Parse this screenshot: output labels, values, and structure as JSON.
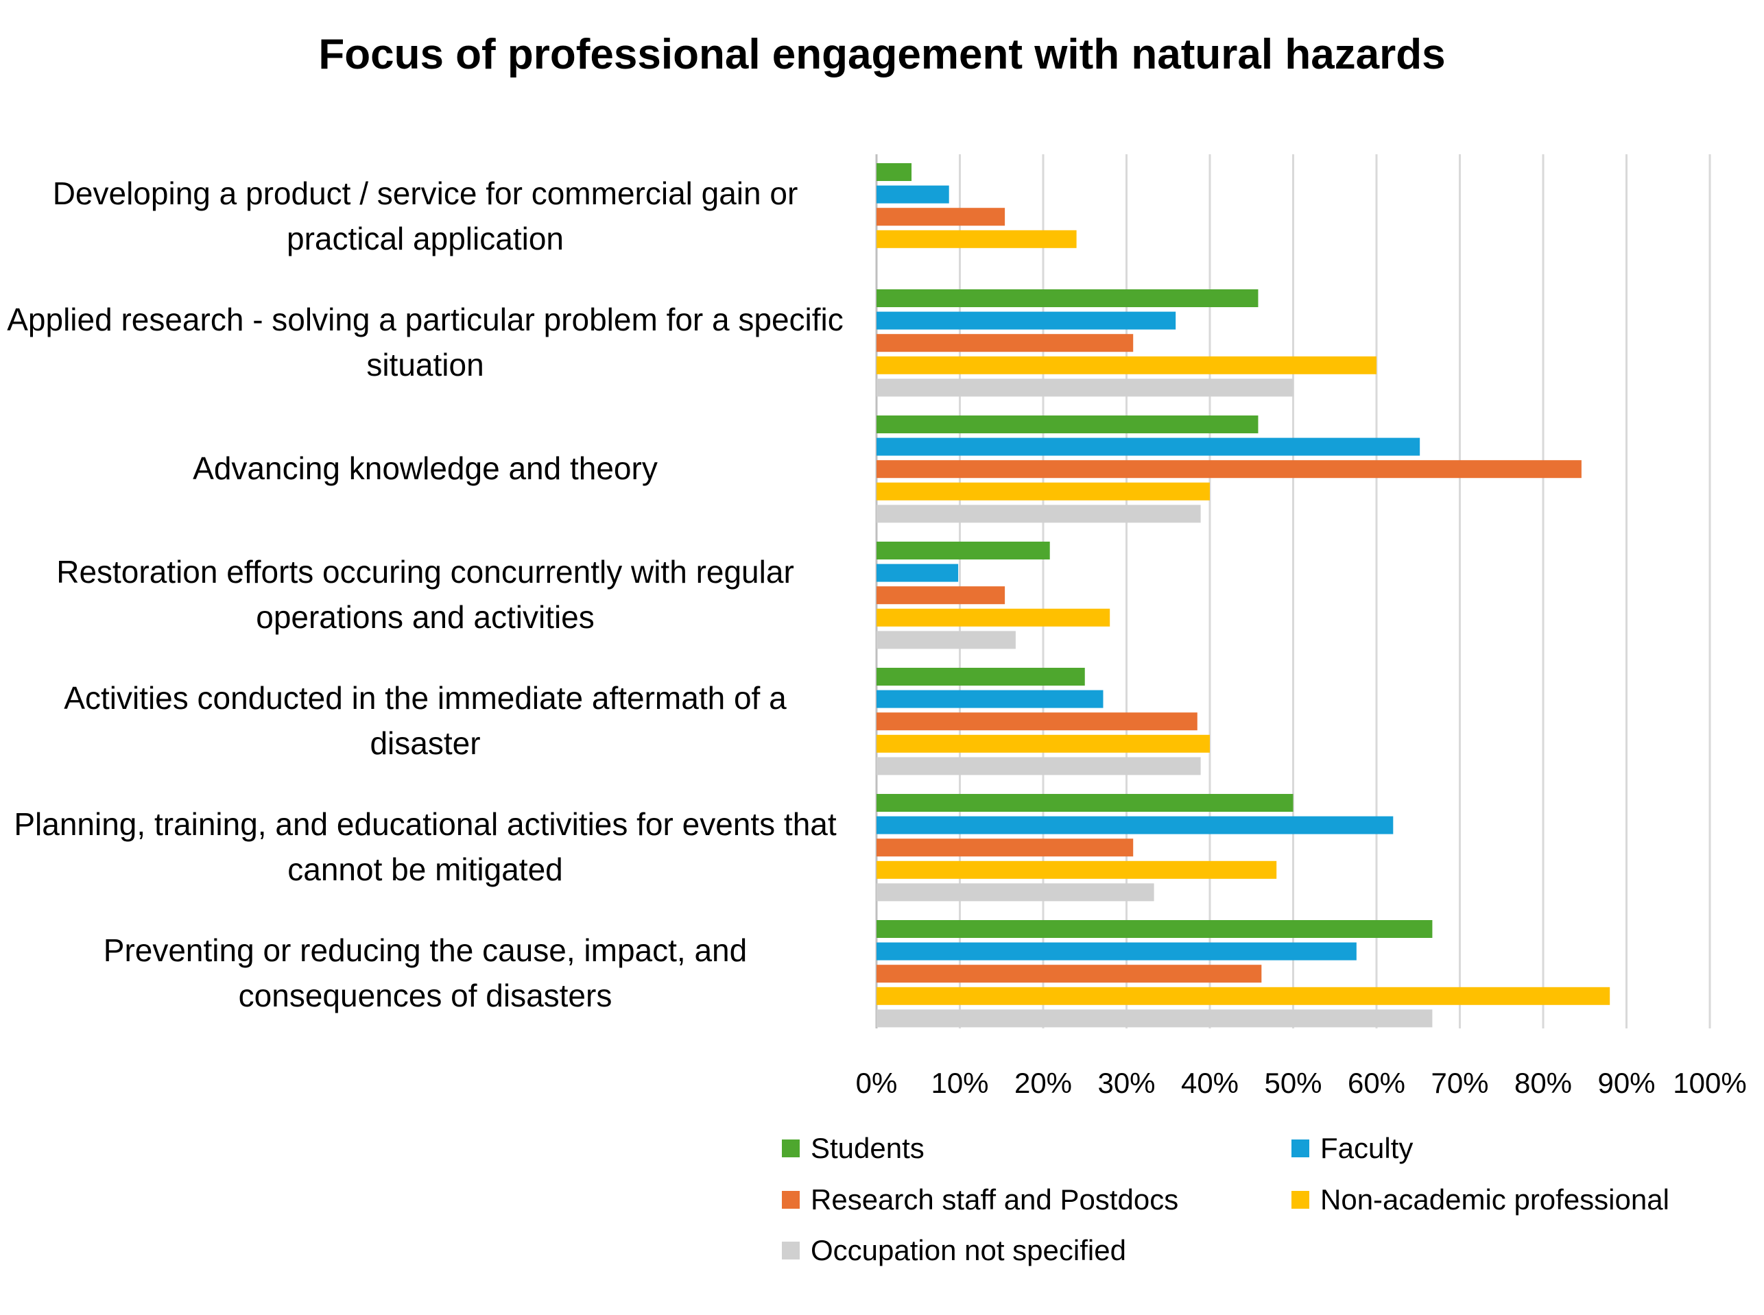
{
  "chart_data": {
    "type": "bar",
    "orientation": "horizontal",
    "title": "Focus of professional engagement with natural hazards",
    "categories": [
      "Developing a product / service for commercial gain or practical application",
      "Applied research - solving a particular problem for a specific situation",
      "Advancing knowledge and theory",
      "Restoration efforts occuring concurrently with regular operations and activities",
      "Activities conducted in the immediate aftermath of a disaster",
      "Planning, training, and educational activities for events that cannot be mitigated",
      "Preventing or reducing the cause, impact, and consequences of disasters"
    ],
    "series": [
      {
        "name": "Students",
        "color": "#4ea72e",
        "values": [
          4.2,
          45.8,
          45.8,
          20.8,
          25.0,
          50.0,
          66.7
        ]
      },
      {
        "name": "Faculty",
        "color": "#149fd8",
        "values": [
          8.7,
          35.9,
          65.2,
          9.8,
          27.2,
          62.0,
          57.6
        ]
      },
      {
        "name": "Research staff and Postdocs",
        "color": "#e97132",
        "values": [
          15.4,
          30.8,
          84.6,
          15.4,
          38.5,
          30.8,
          46.2
        ]
      },
      {
        "name": "Non-academic professional",
        "color": "#ffc000",
        "values": [
          24.0,
          60.0,
          40.0,
          28.0,
          40.0,
          48.0,
          88.0
        ]
      },
      {
        "name": "Occupation not specified",
        "color": "#d0d0d0",
        "values": [
          0,
          50.0,
          38.9,
          16.7,
          38.9,
          33.3,
          66.7
        ]
      }
    ],
    "xlim": [
      0,
      100
    ],
    "x_ticks": [
      "0%",
      "10%",
      "20%",
      "30%",
      "40%",
      "50%",
      "60%",
      "70%",
      "80%",
      "90%",
      "100%"
    ],
    "grid": true,
    "legend_position": "bottom"
  }
}
